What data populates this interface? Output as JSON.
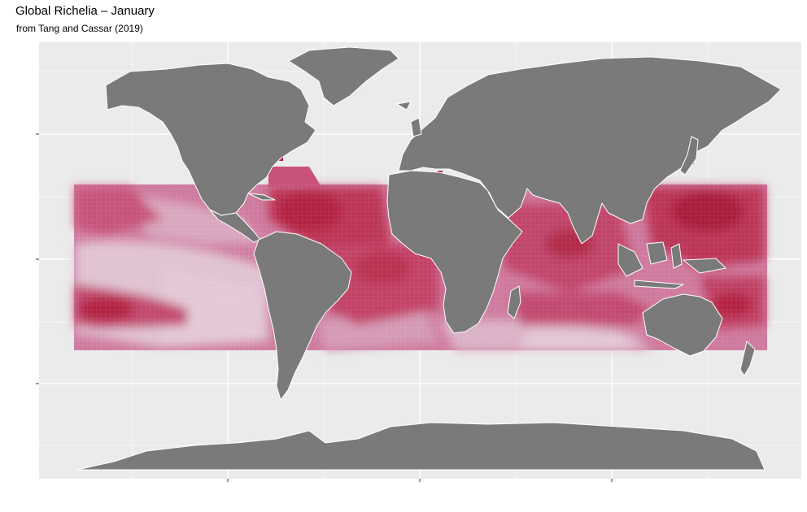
{
  "header": {
    "title": "Global Richelia – January",
    "subtitle": "from Tang and Cassar (2019)"
  },
  "map": {
    "variable": "Richelia",
    "month": "January",
    "source": "Tang and Cassar (2019)",
    "x_ticks": 3,
    "y_ticks": 3,
    "x_tick_labels": [],
    "y_tick_labels": [],
    "legend": "none",
    "grid": true,
    "colors": {
      "panel_bg": "#ebebeb",
      "gridline": "#ffffff",
      "land": "#7a7a7a",
      "borders": "#ffffff",
      "abundance_low": "#e0c2d2",
      "abundance_mid_low": "#d490ae",
      "abundance_mid": "#c8527a",
      "abundance_high": "#b2243f"
    }
  }
}
